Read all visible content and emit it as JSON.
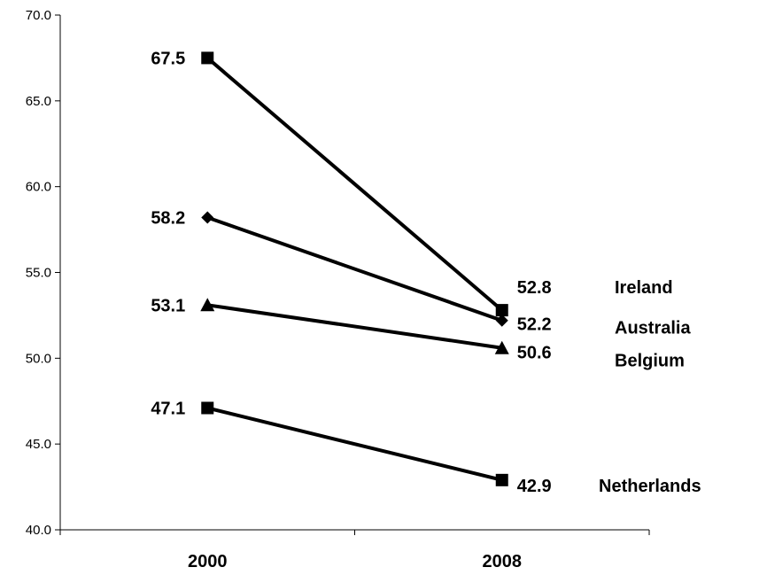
{
  "chart_data": {
    "type": "line",
    "categories": [
      "2000",
      "2008"
    ],
    "ylim": [
      40.0,
      70.0
    ],
    "ytick_step": 5.0,
    "yticks": [
      "40.0",
      "45.0",
      "50.0",
      "55.0",
      "60.0",
      "65.0",
      "70.0"
    ],
    "grid": false,
    "legend": "right-of-plot",
    "series": [
      {
        "name": "Ireland",
        "values": [
          67.5,
          52.8
        ],
        "marker": "square",
        "labels": [
          "67.5",
          "52.8"
        ]
      },
      {
        "name": "Australia",
        "values": [
          58.2,
          52.2
        ],
        "marker": "diamond",
        "labels": [
          "58.2",
          "52.2"
        ]
      },
      {
        "name": "Belgium",
        "values": [
          53.1,
          50.6
        ],
        "marker": "triangle",
        "labels": [
          "53.1",
          "50.6"
        ]
      },
      {
        "name": "Netherlands",
        "values": [
          47.1,
          42.9
        ],
        "marker": "square",
        "labels": [
          "47.1",
          "42.9"
        ]
      }
    ]
  }
}
